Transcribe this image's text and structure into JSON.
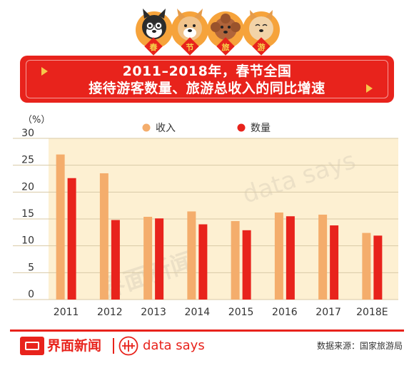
{
  "header": {
    "title_line1": "2011–2018年，春节全国",
    "title_line2": "接待游客数量、旅游总收入的同比增速",
    "badge_chars": [
      "春",
      "节",
      "旅",
      "游"
    ],
    "accent_color": "#e8231c"
  },
  "chart_data": {
    "type": "bar",
    "title": "2011–2018年，春节全国接待游客数量、旅游总收入的同比增速",
    "ylabel": "（%）",
    "xlabel": "",
    "ylim": [
      0,
      30
    ],
    "yticks": [
      0,
      5,
      10,
      15,
      20,
      25,
      30
    ],
    "categories": [
      "2011",
      "2012",
      "2013",
      "2014",
      "2015",
      "2016",
      "2017",
      "2018E"
    ],
    "series": [
      {
        "name": "收入",
        "color": "#f4ad6c",
        "values": [
          27.0,
          23.5,
          15.4,
          16.4,
          14.6,
          16.2,
          15.8,
          12.4
        ]
      },
      {
        "name": "数量",
        "color": "#e8231c",
        "values": [
          22.6,
          14.8,
          15.1,
          14.0,
          12.9,
          15.5,
          13.8,
          11.9
        ]
      }
    ],
    "grid": false,
    "legend": "top-center",
    "plot_background": "#fdf0d2"
  },
  "watermark": {
    "brand": "界面新闻",
    "text": "data says"
  },
  "footer": {
    "brand": "界面新闻",
    "tagline": "data says",
    "source": "数据来源：国家旅游局"
  }
}
